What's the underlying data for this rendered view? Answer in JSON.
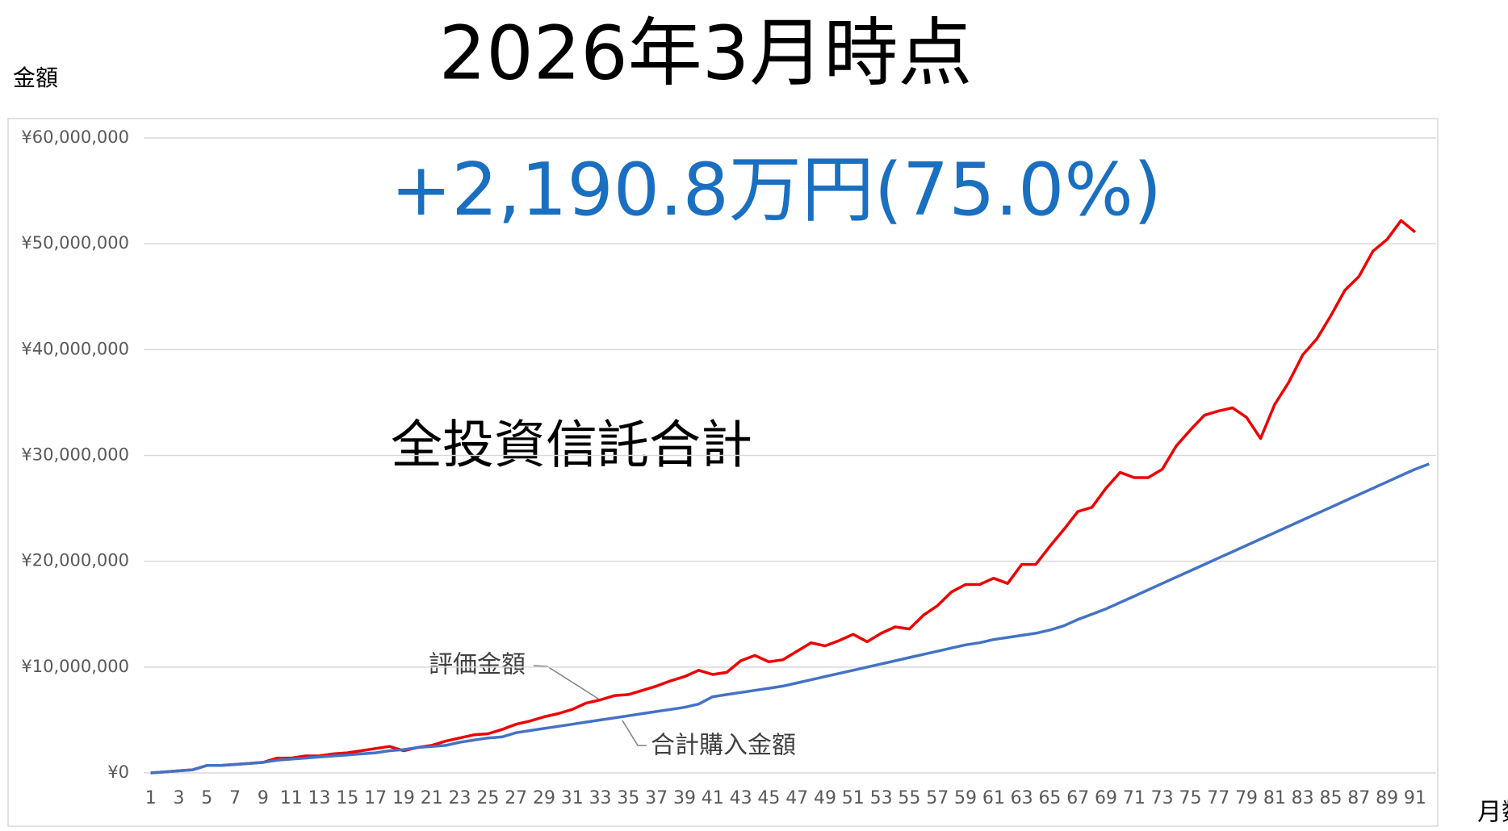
{
  "chart_data": {
    "type": "line",
    "title": "2026年3月時点",
    "subtitle": "+2,190.8万円(75.0%)",
    "annotation": "全投資信託合計",
    "y_label": "金額",
    "x_label": "月数",
    "categories": [
      "1",
      null,
      "3",
      null,
      "5",
      null,
      "7",
      null,
      "9",
      null,
      "11",
      null,
      "13",
      null,
      "15",
      null,
      "17",
      null,
      "19",
      null,
      "21",
      null,
      "23",
      null,
      "25",
      null,
      "27",
      null,
      "29",
      null,
      "31",
      null,
      "33",
      null,
      "35",
      null,
      "37",
      null,
      "39",
      null,
      "41",
      null,
      "43",
      null,
      "45",
      null,
      "47",
      null,
      "49",
      null,
      "51",
      null,
      "53",
      null,
      "55",
      null,
      "57",
      null,
      "59",
      null,
      "61",
      null,
      "63",
      null,
      "65",
      null,
      "67",
      null,
      "69",
      null,
      "71",
      null,
      "73",
      null,
      "75",
      null,
      "77",
      null,
      "79",
      null,
      "81",
      null,
      "83",
      null,
      "85",
      null,
      "87",
      null,
      "89",
      null,
      "91",
      null
    ],
    "series": [
      {
        "name": "評価金額",
        "color": "#ee0000",
        "values": [
          0,
          100000,
          200000,
          300000,
          700000,
          700000,
          800000,
          900000,
          1000000,
          1400000,
          1400000,
          1600000,
          1600000,
          1800000,
          1900000,
          2100000,
          2300000,
          2500000,
          2100000,
          2400000,
          2600000,
          3000000,
          3300000,
          3600000,
          3700000,
          4100000,
          4600000,
          4900000,
          5300000,
          5600000,
          6000000,
          6600000,
          6900000,
          7300000,
          7400000,
          7800000,
          8200000,
          8700000,
          9100000,
          9700000,
          9300000,
          9500000,
          10600000,
          11100000,
          10500000,
          10700000,
          11500000,
          12300000,
          12000000,
          12500000,
          13100000,
          12400000,
          13200000,
          13800000,
          13600000,
          14900000,
          15800000,
          17100000,
          17800000,
          17800000,
          18400000,
          17900000,
          19700000,
          19700000,
          21400000,
          23000000,
          24700000,
          25100000,
          26900000,
          28400000,
          27900000,
          27900000,
          28700000,
          30900000,
          32400000,
          33800000,
          34200000,
          34500000,
          33600000,
          31600000,
          34800000,
          36900000,
          39500000,
          41000000,
          43200000,
          45600000,
          46900000,
          49300000,
          50400000,
          52200000,
          51100000,
          null
        ]
      },
      {
        "name": "合計購入金額",
        "color": "#4472c4",
        "values": [
          0,
          100000,
          200000,
          300000,
          700000,
          700000,
          800000,
          900000,
          1000000,
          1200000,
          1300000,
          1400000,
          1500000,
          1600000,
          1700000,
          1800000,
          1900000,
          2100000,
          2200000,
          2400000,
          2500000,
          2600000,
          2900000,
          3100000,
          3300000,
          3400000,
          3800000,
          4000000,
          4200000,
          4400000,
          4600000,
          4800000,
          5000000,
          5200000,
          5400000,
          5600000,
          5800000,
          6000000,
          6200000,
          6500000,
          7200000,
          7400000,
          7600000,
          7800000,
          8000000,
          8200000,
          8500000,
          8800000,
          9100000,
          9400000,
          9700000,
          10000000,
          10300000,
          10600000,
          10900000,
          11200000,
          11500000,
          11800000,
          12100000,
          12300000,
          12600000,
          12800000,
          13000000,
          13200000,
          13500000,
          13900000,
          14500000,
          15000000,
          15500000,
          16100000,
          16700000,
          17300000,
          17900000,
          18500000,
          19100000,
          19700000,
          20300000,
          20900000,
          21500000,
          22100000,
          22700000,
          23300000,
          23900000,
          24500000,
          25100000,
          25700000,
          26300000,
          26900000,
          27500000,
          28100000,
          28700000,
          29200000
        ]
      }
    ],
    "ylim": [
      0,
      60000000
    ],
    "yticks": [
      {
        "value": 0,
        "label": "¥0"
      },
      {
        "value": 10000000,
        "label": "¥10,000,000"
      },
      {
        "value": 20000000,
        "label": "¥20,000,000"
      },
      {
        "value": 30000000,
        "label": "¥30,000,000"
      },
      {
        "value": 40000000,
        "label": "¥40,000,000"
      },
      {
        "value": 50000000,
        "label": "¥50,000,000"
      },
      {
        "value": 60000000,
        "label": "¥60,000,000"
      }
    ],
    "grid": true
  }
}
